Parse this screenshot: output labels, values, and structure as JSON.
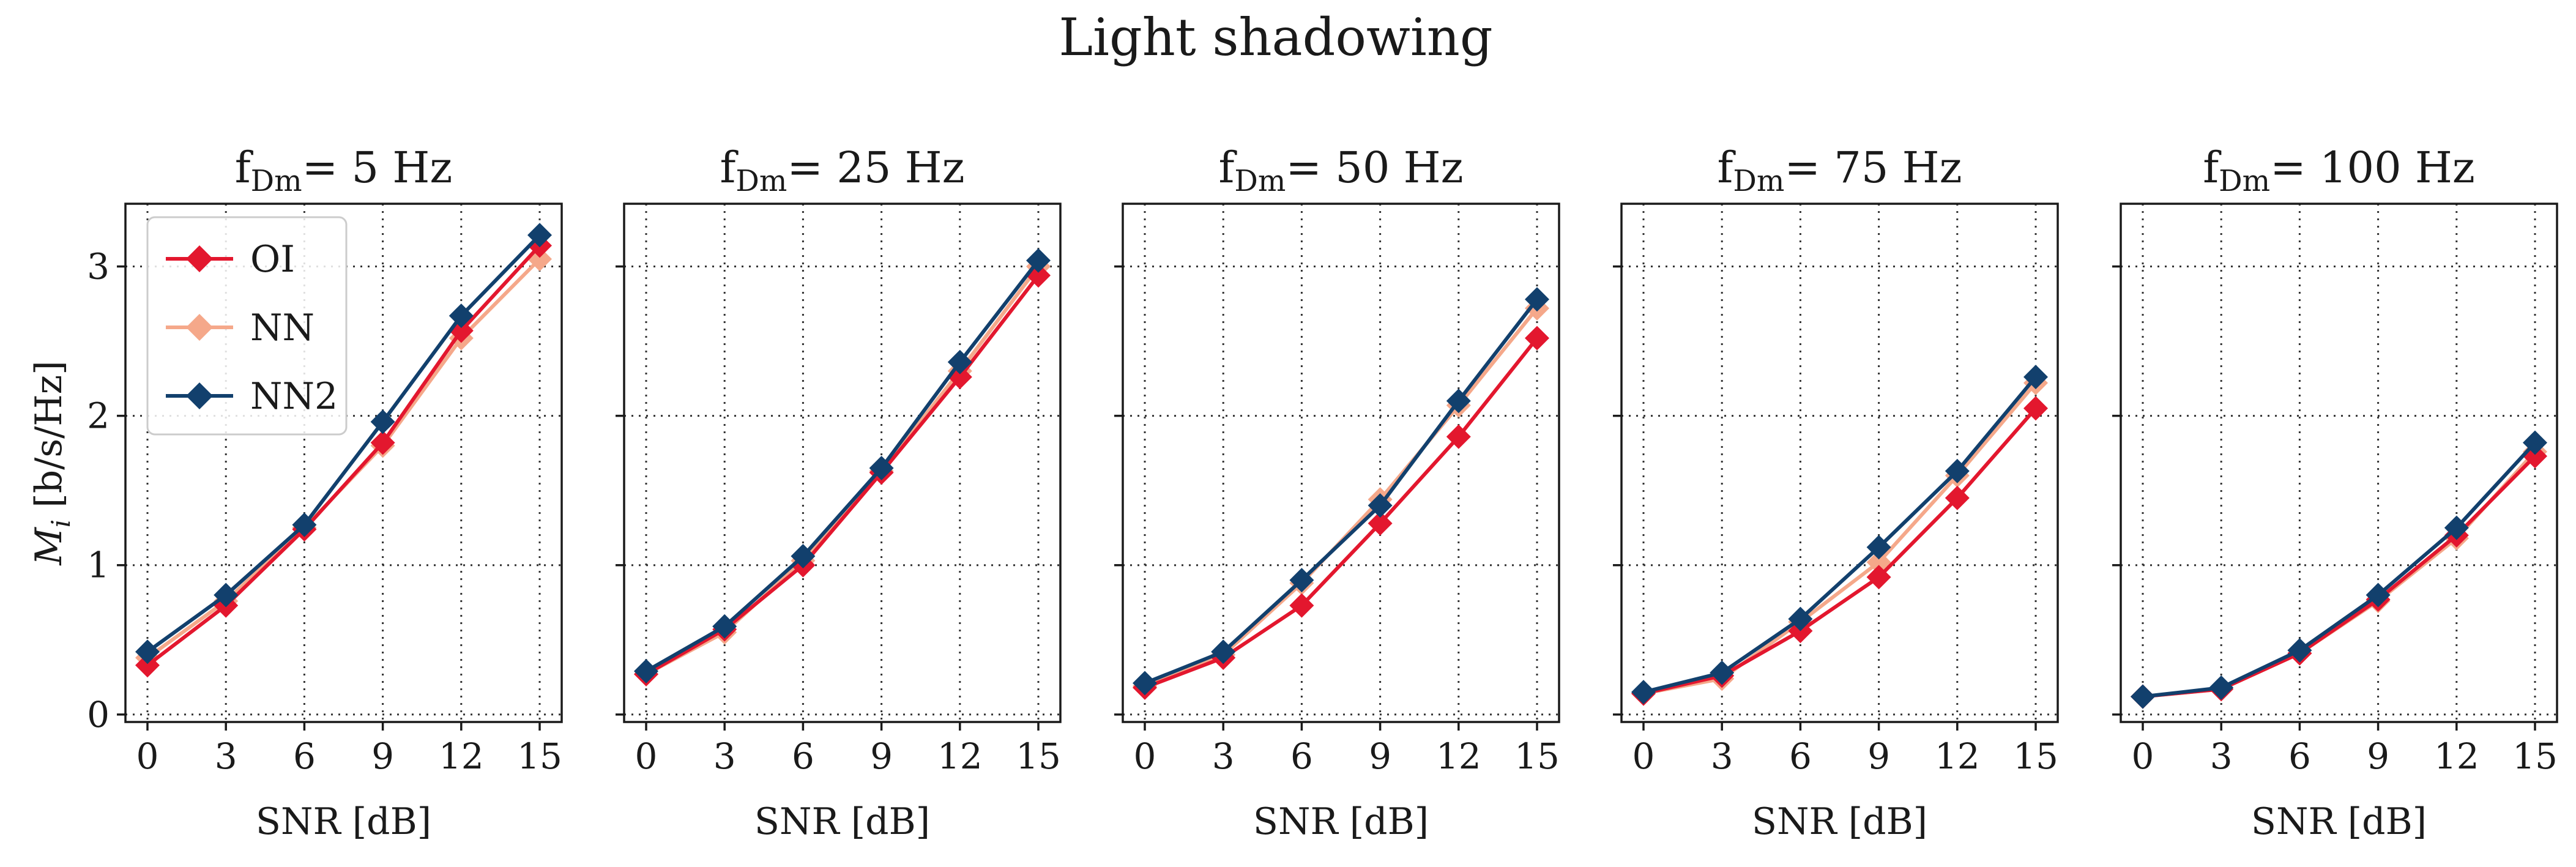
{
  "figure_title": "Light shadowing",
  "colors": {
    "OI": "#e3172e",
    "NN": "#f5a88a",
    "NN2": "#12406d"
  },
  "chart_data": {
    "type": "line",
    "shared": {
      "x": [
        0,
        3,
        6,
        9,
        12,
        15
      ],
      "x_ticks": [
        "0",
        "3",
        "6",
        "9",
        "12",
        "15"
      ],
      "xlabel": "SNR [dB]",
      "ylabel_main": "M",
      "ylabel_sub": "i",
      "ylabel_rest": " [b/s/Hz]",
      "ylim": [
        -0.05,
        3.42
      ],
      "y_ticks": [
        "0",
        "1",
        "2",
        "3"
      ],
      "grid": true,
      "legend_location": "top-left of first panel"
    },
    "legend": [
      {
        "key": "OI",
        "label": "OI"
      },
      {
        "key": "NN",
        "label": "NN"
      },
      {
        "key": "NN2",
        "label": "NN2"
      }
    ],
    "panels": [
      {
        "title_main": "f",
        "title_sub": "Dm",
        "title_rest": "= 5 Hz",
        "series": [
          {
            "key": "OI",
            "values": [
              0.33,
              0.73,
              1.24,
              1.82,
              2.57,
              3.14
            ]
          },
          {
            "key": "NN",
            "values": [
              0.38,
              0.76,
              1.25,
              1.8,
              2.52,
              3.05
            ]
          },
          {
            "key": "NN2",
            "values": [
              0.42,
              0.8,
              1.27,
              1.96,
              2.67,
              3.21
            ]
          }
        ]
      },
      {
        "title_main": "f",
        "title_sub": "Dm",
        "title_rest": "= 25 Hz",
        "series": [
          {
            "key": "OI",
            "values": [
              0.27,
              0.57,
              1.0,
              1.62,
              2.26,
              2.94
            ]
          },
          {
            "key": "NN",
            "values": [
              0.27,
              0.55,
              1.03,
              1.63,
              2.3,
              3.0
            ]
          },
          {
            "key": "NN2",
            "values": [
              0.29,
              0.59,
              1.06,
              1.65,
              2.36,
              3.04
            ]
          }
        ]
      },
      {
        "title_main": "f",
        "title_sub": "Dm",
        "title_rest": "= 50 Hz",
        "series": [
          {
            "key": "OI",
            "values": [
              0.18,
              0.38,
              0.73,
              1.28,
              1.86,
              2.52
            ]
          },
          {
            "key": "NN",
            "values": [
              0.19,
              0.4,
              0.88,
              1.44,
              2.07,
              2.72
            ]
          },
          {
            "key": "NN2",
            "values": [
              0.21,
              0.42,
              0.9,
              1.4,
              2.1,
              2.78
            ]
          }
        ]
      },
      {
        "title_main": "f",
        "title_sub": "Dm",
        "title_rest": "= 75 Hz",
        "series": [
          {
            "key": "OI",
            "values": [
              0.14,
              0.26,
              0.56,
              0.92,
              1.45,
              2.05
            ]
          },
          {
            "key": "NN",
            "values": [
              0.14,
              0.24,
              0.62,
              1.02,
              1.6,
              2.22
            ]
          },
          {
            "key": "NN2",
            "values": [
              0.15,
              0.28,
              0.64,
              1.12,
              1.63,
              2.26
            ]
          }
        ]
      },
      {
        "title_main": "f",
        "title_sub": "Dm",
        "title_rest": "= 100 Hz",
        "series": [
          {
            "key": "OI",
            "values": [
              0.12,
              0.17,
              0.41,
              0.77,
              1.2,
              1.73
            ]
          },
          {
            "key": "NN",
            "values": [
              0.12,
              0.17,
              0.41,
              0.76,
              1.18,
              1.76
            ]
          },
          {
            "key": "NN2",
            "values": [
              0.12,
              0.18,
              0.43,
              0.8,
              1.25,
              1.82
            ]
          }
        ]
      }
    ]
  }
}
